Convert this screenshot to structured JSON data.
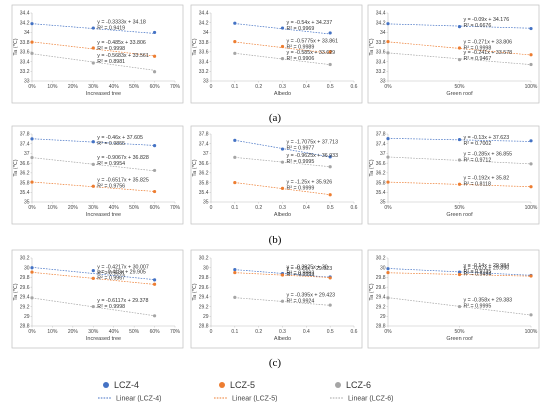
{
  "colors": {
    "lcz4": "#4472C4",
    "lcz5": "#ED7D31",
    "lcz6": "#A5A5A5",
    "frame": "#BFBFBF",
    "grid": "#D9D9D9"
  },
  "panel_labels": [
    "(a)",
    "(b)",
    "(c)"
  ],
  "legend": {
    "markers": [
      {
        "label": "LCZ-4",
        "color": "#4472C4"
      },
      {
        "label": "LCZ-5",
        "color": "#ED7D31"
      },
      {
        "label": "LCZ-6",
        "color": "#A5A5A5"
      }
    ],
    "lines": [
      {
        "label": "Linear (LCZ-4)",
        "color": "#4472C4"
      },
      {
        "label": "Linear (LCZ-5)",
        "color": "#ED7D31"
      },
      {
        "label": "Linear (LCZ-6)",
        "color": "#A5A5A5"
      }
    ]
  },
  "chart_data": [
    {
      "id": "a1",
      "type": "scatter",
      "row": 0,
      "col": 0,
      "xlabel": "Increased tree",
      "ylabel": "Ta (℃)",
      "xscale": "linear",
      "xlim": [
        0,
        0.7
      ],
      "xticks": [
        0,
        0.1,
        0.2,
        0.3,
        0.4,
        0.5,
        0.6,
        0.7
      ],
      "xtick_labels": [
        "0%",
        "10%",
        "20%",
        "30%",
        "40%",
        "50%",
        "60%",
        "70%"
      ],
      "ylim": [
        33,
        34.4
      ],
      "yticks": [
        33,
        33.2,
        33.4,
        33.6,
        33.8,
        34,
        34.2,
        34.4
      ],
      "ytick_labels": [
        "33",
        "33.2",
        "33.4",
        "33.6",
        "33.8",
        "34",
        "34.2",
        "34.4"
      ],
      "series": [
        {
          "key": "lcz4",
          "points": [
            [
              0,
              34.18
            ],
            [
              0.3,
              34.09
            ],
            [
              0.6,
              34.0
            ]
          ],
          "fit": [
            -0.3333,
            34.18
          ],
          "equation": "y = -0.3333x + 34.18",
          "r2": "R² = 0.9419"
        },
        {
          "key": "lcz5",
          "points": [
            [
              0,
              33.8
            ],
            [
              0.3,
              33.68
            ],
            [
              0.6,
              33.51
            ]
          ],
          "fit": [
            -0.485,
            33.806
          ],
          "equation": "y = -0.485x + 33.806",
          "r2": "R² = 0.9998"
        },
        {
          "key": "lcz6",
          "points": [
            [
              0,
              33.57
            ],
            [
              0.3,
              33.37
            ],
            [
              0.6,
              33.19
            ]
          ],
          "fit": [
            -0.5683,
            33.561
          ],
          "equation": "y = -0.5683x + 33.561",
          "r2": "R² = 0.8981"
        }
      ]
    },
    {
      "id": "a2",
      "type": "scatter",
      "row": 0,
      "col": 1,
      "xlabel": "Albedo",
      "ylabel": "Ta (℃)",
      "xscale": "linear",
      "xlim": [
        0,
        0.6
      ],
      "xticks": [
        0,
        0.1,
        0.2,
        0.3,
        0.4,
        0.5,
        0.6
      ],
      "xtick_labels": [
        "0",
        "0.1",
        "0.2",
        "0.3",
        "0.4",
        "0.5",
        "0.6"
      ],
      "ylim": [
        33,
        34.4
      ],
      "yticks": [
        33,
        33.2,
        33.4,
        33.6,
        33.8,
        34,
        34.2,
        34.4
      ],
      "ytick_labels": [
        "33",
        "33.2",
        "33.4",
        "33.6",
        "33.8",
        "34",
        "34.2",
        "34.4"
      ],
      "series": [
        {
          "key": "lcz4",
          "points": [
            [
              0.1,
              34.19
            ],
            [
              0.3,
              34.09
            ],
            [
              0.5,
              33.99
            ]
          ],
          "fit": [
            -0.54,
            34.237
          ],
          "equation": "y = -0.54x + 34.237",
          "r2": "R² = 0.9969"
        },
        {
          "key": "lcz5",
          "points": [
            [
              0.1,
              33.81
            ],
            [
              0.3,
              33.71
            ],
            [
              0.5,
              33.6
            ]
          ],
          "fit": [
            -0.5775,
            33.861
          ],
          "equation": "y = -0.5775x + 33.861",
          "r2": "R² = 0.9989"
        },
        {
          "key": "lcz6",
          "points": [
            [
              0.1,
              33.57
            ],
            [
              0.3,
              33.46
            ],
            [
              0.5,
              33.34
            ]
          ],
          "fit": [
            -0.585,
            33.629
          ],
          "equation": "y = -0.585x + 33.629",
          "r2": "R² = 0.9906"
        }
      ]
    },
    {
      "id": "a3",
      "type": "scatter",
      "row": 0,
      "col": 2,
      "xlabel": "Green roof",
      "ylabel": "Ta (℃)",
      "xscale": "linear",
      "xlim": [
        0,
        1
      ],
      "xticks": [
        0,
        0.5,
        1
      ],
      "xtick_labels": [
        "0%",
        "50%",
        "100%"
      ],
      "ylim": [
        33,
        34.4
      ],
      "yticks": [
        33,
        33.2,
        33.4,
        33.6,
        33.8,
        34,
        34.2,
        34.4
      ],
      "ytick_labels": [
        "33",
        "33.2",
        "33.4",
        "33.6",
        "33.8",
        "34",
        "34.2",
        "34.4"
      ],
      "series": [
        {
          "key": "lcz4",
          "points": [
            [
              0,
              34.18
            ],
            [
              0.5,
              34.12
            ],
            [
              1,
              34.08
            ]
          ],
          "fit": [
            -0.09,
            34.176
          ],
          "equation": "y = -0.09x + 34.176",
          "r2": "R² = 0.6676"
        },
        {
          "key": "lcz5",
          "points": [
            [
              0,
              33.81
            ],
            [
              0.5,
              33.68
            ],
            [
              1,
              33.54
            ]
          ],
          "fit": [
            -0.271,
            33.806
          ],
          "equation": "y = -0.271x + 33.806",
          "r2": "R² = 0.9998"
        },
        {
          "key": "lcz6",
          "points": [
            [
              0,
              33.58
            ],
            [
              0.5,
              33.44
            ],
            [
              1,
              33.34
            ]
          ],
          "fit": [
            -0.241,
            33.578
          ],
          "equation": "y = -0.241x + 33.578",
          "r2": "R² = 0.9467"
        }
      ]
    },
    {
      "id": "b1",
      "type": "scatter",
      "row": 1,
      "col": 0,
      "xlabel": "Increased tree",
      "ylabel": "Ta (℃)",
      "xscale": "linear",
      "xlim": [
        0,
        0.7
      ],
      "xticks": [
        0,
        0.1,
        0.2,
        0.3,
        0.4,
        0.5,
        0.6,
        0.7
      ],
      "xtick_labels": [
        "0%",
        "10%",
        "20%",
        "30%",
        "40%",
        "50%",
        "60%",
        "70%"
      ],
      "ylim": [
        35,
        37.8
      ],
      "yticks": [
        35,
        35.4,
        35.8,
        36.2,
        36.6,
        37,
        37.4,
        37.8
      ],
      "ytick_labels": [
        "35",
        "35.4",
        "35.8",
        "36.2",
        "36.6",
        "37",
        "37.4",
        "37.8"
      ],
      "series": [
        {
          "key": "lcz4",
          "points": [
            [
              0,
              37.6
            ],
            [
              0.3,
              37.48
            ],
            [
              0.6,
              37.32
            ]
          ],
          "fit": [
            -0.46,
            37.605
          ],
          "equation": "y = -0.46x + 37.605",
          "r2": "R² = 0.9855"
        },
        {
          "key": "lcz5",
          "points": [
            [
              0,
              35.82
            ],
            [
              0.3,
              35.65
            ],
            [
              0.6,
              35.43
            ]
          ],
          "fit": [
            -0.6517,
            35.825
          ],
          "equation": "y = -0.6517x + 35.825",
          "r2": "R² = 0.9756"
        },
        {
          "key": "lcz6",
          "points": [
            [
              0,
              36.83
            ],
            [
              0.3,
              36.55
            ],
            [
              0.6,
              36.3
            ]
          ],
          "fit": [
            -0.9067,
            36.828
          ],
          "equation": "y = -0.9067x + 36.828",
          "r2": "R² = 0.9954"
        }
      ]
    },
    {
      "id": "b2",
      "type": "scatter",
      "row": 1,
      "col": 1,
      "xlabel": "Albedo",
      "ylabel": "Ta (℃)",
      "xscale": "linear",
      "xlim": [
        0,
        0.6
      ],
      "xticks": [
        0,
        0.1,
        0.2,
        0.3,
        0.4,
        0.5,
        0.6
      ],
      "xtick_labels": [
        "0",
        "0.1",
        "0.2",
        "0.3",
        "0.4",
        "0.5",
        "0.6"
      ],
      "ylim": [
        35,
        37.8
      ],
      "yticks": [
        35,
        35.4,
        35.8,
        36.2,
        36.6,
        37,
        37.4,
        37.8
      ],
      "ytick_labels": [
        "35",
        "35.4",
        "35.8",
        "36.2",
        "36.6",
        "37",
        "37.4",
        "37.8"
      ],
      "series": [
        {
          "key": "lcz4",
          "points": [
            [
              0.1,
              37.54
            ],
            [
              0.3,
              37.18
            ],
            [
              0.5,
              36.86
            ]
          ],
          "fit": [
            -1.7075,
            37.713
          ],
          "equation": "y = -1.7075x + 37.713",
          "r2": "R² = 0.9977"
        },
        {
          "key": "lcz5",
          "points": [
            [
              0.1,
              35.8
            ],
            [
              0.3,
              35.56
            ],
            [
              0.5,
              35.3
            ]
          ],
          "fit": [
            -1.25,
            35.926
          ],
          "equation": "y = -1.25x + 35.926",
          "r2": "R² = 0.9999"
        },
        {
          "key": "lcz6",
          "points": [
            [
              0.1,
              36.84
            ],
            [
              0.3,
              36.64
            ],
            [
              0.5,
              36.45
            ]
          ],
          "fit": [
            -0.9625,
            36.933
          ],
          "equation": "y = -0.9625x + 36.933",
          "r2": "R² = 0.9995"
        }
      ]
    },
    {
      "id": "b3",
      "type": "scatter",
      "row": 1,
      "col": 2,
      "xlabel": "Green roof",
      "ylabel": "Ta (℃)",
      "xscale": "linear",
      "xlim": [
        0,
        1
      ],
      "xticks": [
        0,
        0.5,
        1
      ],
      "xtick_labels": [
        "0%",
        "50%",
        "100%"
      ],
      "ylim": [
        35,
        37.8
      ],
      "yticks": [
        35,
        35.4,
        35.8,
        36.2,
        36.6,
        37,
        37.4,
        37.8
      ],
      "ytick_labels": [
        "35",
        "35.4",
        "35.8",
        "36.2",
        "36.6",
        "37",
        "37.4",
        "37.8"
      ],
      "series": [
        {
          "key": "lcz4",
          "points": [
            [
              0,
              37.61
            ],
            [
              0.5,
              37.57
            ],
            [
              1,
              37.52
            ]
          ],
          "fit": [
            -0.13,
            37.623
          ],
          "equation": "y = -0.13x + 37.623",
          "r2": "R² = 0.7002"
        },
        {
          "key": "lcz5",
          "points": [
            [
              0,
              35.82
            ],
            [
              0.5,
              35.73
            ],
            [
              1,
              35.63
            ]
          ],
          "fit": [
            -0.192,
            35.82
          ],
          "equation": "y = -0.192x + 35.82",
          "r2": "R² = 0.8118"
        },
        {
          "key": "lcz6",
          "points": [
            [
              0,
              36.85
            ],
            [
              0.5,
              36.73
            ],
            [
              1,
              36.57
            ]
          ],
          "fit": [
            -0.285,
            36.855
          ],
          "equation": "y = -0.285x + 36.855",
          "r2": "R² = 0.9712"
        }
      ]
    },
    {
      "id": "c1",
      "type": "scatter",
      "row": 2,
      "col": 0,
      "xlabel": "Increased tree",
      "ylabel": "Ta (℃)",
      "xscale": "linear",
      "xlim": [
        0,
        0.7
      ],
      "xticks": [
        0,
        0.1,
        0.2,
        0.3,
        0.4,
        0.5,
        0.6,
        0.7
      ],
      "xtick_labels": [
        "0%",
        "10%",
        "20%",
        "30%",
        "40%",
        "50%",
        "60%",
        "70%"
      ],
      "ylim": [
        28.8,
        30.2
      ],
      "yticks": [
        28.8,
        29,
        29.2,
        29.4,
        29.6,
        29.8,
        30,
        30.2
      ],
      "ytick_labels": [
        "28.8",
        "29",
        "29.2",
        "29.4",
        "29.6",
        "29.8",
        "30",
        "30.2"
      ],
      "series": [
        {
          "key": "lcz4",
          "points": [
            [
              0,
              30.0
            ],
            [
              0.3,
              29.94
            ],
            [
              0.6,
              29.75
            ]
          ],
          "fit": [
            -0.4217,
            30.007
          ],
          "equation": "y = -0.4217x + 30.007",
          "r2": "R² = 0.9531"
        },
        {
          "key": "lcz5",
          "points": [
            [
              0,
              29.91
            ],
            [
              0.3,
              29.78
            ],
            [
              0.6,
              29.66
            ]
          ],
          "fit": [
            -0.415,
            29.905
          ],
          "equation": "y = -0.415x + 29.905",
          "r2": "R² = 0.9967"
        },
        {
          "key": "lcz6",
          "points": [
            [
              0,
              29.38
            ],
            [
              0.3,
              29.2
            ],
            [
              0.6,
              29.01
            ]
          ],
          "fit": [
            -0.6117,
            29.378
          ],
          "equation": "y = -0.6117x + 29.378",
          "r2": "R² = 0.9998"
        }
      ]
    },
    {
      "id": "c2",
      "type": "scatter",
      "row": 2,
      "col": 1,
      "xlabel": "Albedo",
      "ylabel": "Ta (℃)",
      "xscale": "linear",
      "xlim": [
        0,
        0.6
      ],
      "xticks": [
        0,
        0.1,
        0.2,
        0.3,
        0.4,
        0.5,
        0.6
      ],
      "xtick_labels": [
        "0",
        "0.1",
        "0.2",
        "0.3",
        "0.4",
        "0.5",
        "0.6"
      ],
      "ylim": [
        28.8,
        30.2
      ],
      "yticks": [
        28.8,
        29,
        29.2,
        29.4,
        29.6,
        29.8,
        30,
        30.2
      ],
      "ytick_labels": [
        "28.8",
        "29",
        "29.2",
        "29.4",
        "29.6",
        "29.8",
        "30",
        "30.2"
      ],
      "series": [
        {
          "key": "lcz4",
          "points": [
            [
              0.1,
              29.96
            ],
            [
              0.3,
              29.88
            ],
            [
              0.5,
              29.81
            ]
          ],
          "fit": [
            -0.3925,
            30
          ],
          "equation": "y = -0.3925x + 30",
          "r2": "R² = 0.9993"
        },
        {
          "key": "lcz5",
          "points": [
            [
              0.1,
              29.9
            ],
            [
              0.3,
              29.85
            ],
            [
              0.5,
              29.79
            ]
          ],
          "fit": [
            -0.25,
            29.923
          ],
          "equation": "y = -0.25x + 29.923",
          "r2": "R² = 0.9993"
        },
        {
          "key": "lcz6",
          "points": [
            [
              0.1,
              29.39
            ],
            [
              0.3,
              29.31
            ],
            [
              0.5,
              29.23
            ]
          ],
          "fit": [
            -0.395,
            29.423
          ],
          "equation": "y = -0.395x + 29.423",
          "r2": "R² = 0.9924"
        }
      ]
    },
    {
      "id": "c3",
      "type": "scatter",
      "row": 2,
      "col": 2,
      "xlabel": "Green roof",
      "ylabel": "Ta (℃)",
      "xscale": "linear",
      "xlim": [
        0,
        1
      ],
      "xticks": [
        0,
        0.5,
        1
      ],
      "xtick_labels": [
        "0%",
        "50%",
        "100%"
      ],
      "ylim": [
        28.8,
        30.2
      ],
      "yticks": [
        28.8,
        29,
        29.2,
        29.4,
        29.6,
        29.8,
        30,
        30.2
      ],
      "ytick_labels": [
        "28.8",
        "29",
        "29.2",
        "29.4",
        "29.6",
        "29.8",
        "30",
        "30.2"
      ],
      "series": [
        {
          "key": "lcz4",
          "points": [
            [
              0,
              29.98
            ],
            [
              0.5,
              29.91
            ],
            [
              1,
              29.84
            ]
          ],
          "fit": [
            -0.14,
            29.984
          ],
          "equation": "y = -0.14x + 29.984",
          "r2": "R² = 0.9735"
        },
        {
          "key": "lcz5",
          "points": [
            [
              0,
              29.9
            ],
            [
              0.5,
              29.86
            ],
            [
              1,
              29.83
            ]
          ],
          "fit": [
            -0.07,
            29.896
          ],
          "equation": "y = -0.07x + 29.896",
          "r2": "R² = 0.9494"
        },
        {
          "key": "lcz6",
          "points": [
            [
              0,
              29.38
            ],
            [
              0.5,
              29.2
            ],
            [
              1,
              29.03
            ]
          ],
          "fit": [
            -0.358,
            29.383
          ],
          "equation": "y = -0.358x + 29.383",
          "r2": "R² = 0.9995"
        }
      ]
    }
  ]
}
